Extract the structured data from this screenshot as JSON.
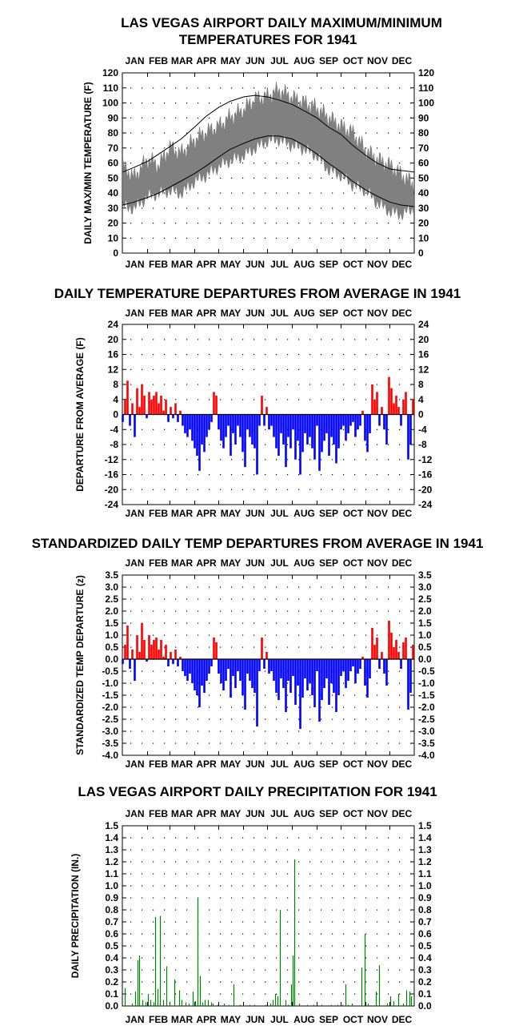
{
  "months": [
    "JAN",
    "FEB",
    "MAR",
    "APR",
    "MAY",
    "JUN",
    "JUL",
    "AUG",
    "SEP",
    "OCT",
    "NOV",
    "DEC"
  ],
  "colors": {
    "max_min_band": "#808080",
    "normal_lines": "#000000",
    "positive_departure": "#ff0000",
    "negative_departure": "#0000ff",
    "precipitation": "#008000",
    "grid_dots": "#000000"
  },
  "chart_data": [
    {
      "id": "temps",
      "type": "area",
      "title_lines": [
        "LAS VEGAS AIRPORT DAILY MAXIMUM/MINIMUM",
        "TEMPERATURES FOR 1941"
      ],
      "ylabel": "DAILY MAX/MIN TEMPERATURE (F)",
      "xlabel": "",
      "ylim": [
        0,
        120
      ],
      "yticks": [
        "0",
        "10",
        "20",
        "30",
        "40",
        "50",
        "60",
        "70",
        "80",
        "90",
        "100",
        "110",
        "120"
      ],
      "grid": true,
      "x": [
        1,
        15,
        32,
        46,
        60,
        74,
        91,
        105,
        121,
        135,
        152,
        166,
        182,
        196,
        213,
        227,
        244,
        258,
        274,
        288,
        305,
        319,
        335,
        349,
        365
      ],
      "series": [
        {
          "key": "max",
          "values": [
            58,
            50,
            62,
            58,
            70,
            66,
            75,
            80,
            84,
            90,
            95,
            102,
            104,
            108,
            103,
            100,
            96,
            90,
            84,
            80,
            68,
            62,
            58,
            52,
            45
          ]
        },
        {
          "key": "min",
          "values": [
            32,
            30,
            38,
            40,
            42,
            40,
            48,
            52,
            58,
            62,
            65,
            70,
            75,
            76,
            72,
            70,
            65,
            56,
            52,
            46,
            42,
            34,
            28,
            26,
            30
          ]
        },
        {
          "key": "normal_max",
          "values": [
            54,
            57,
            61,
            66,
            71,
            76,
            84,
            91,
            97,
            101,
            104,
            105,
            104,
            102,
            99,
            95,
            90,
            84,
            79,
            72,
            65,
            60,
            56,
            55,
            54
          ]
        },
        {
          "key": "normal_min",
          "values": [
            32,
            34,
            37,
            40,
            44,
            48,
            53,
            58,
            64,
            69,
            73,
            76,
            78,
            78,
            76,
            72,
            66,
            60,
            54,
            48,
            42,
            38,
            34,
            32,
            31
          ]
        }
      ]
    },
    {
      "id": "departures",
      "type": "bar",
      "title_lines": [
        "DAILY TEMPERATURE DEPARTURES FROM AVERAGE IN 1941"
      ],
      "ylabel": "DEPARTURE FROM AVERAGE (F)",
      "xlabel": "",
      "ylim": [
        -24,
        24
      ],
      "yticks": [
        "-24",
        "-20",
        "-16",
        "-12",
        "-8",
        "-4",
        "0",
        "4",
        "8",
        "12",
        "16",
        "20",
        "24"
      ],
      "grid": true,
      "x": [
        1,
        4,
        7,
        10,
        13,
        16,
        19,
        22,
        25,
        28,
        31,
        34,
        37,
        40,
        43,
        46,
        49,
        52,
        55,
        58,
        61,
        64,
        67,
        70,
        73,
        76,
        79,
        82,
        85,
        88,
        91,
        94,
        97,
        100,
        103,
        106,
        109,
        112,
        115,
        118,
        121,
        124,
        127,
        130,
        133,
        136,
        139,
        142,
        145,
        148,
        151,
        154,
        157,
        160,
        163,
        166,
        169,
        172,
        175,
        178,
        181,
        184,
        187,
        190,
        193,
        196,
        199,
        202,
        205,
        208,
        211,
        214,
        217,
        220,
        223,
        226,
        229,
        232,
        235,
        238,
        241,
        244,
        247,
        250,
        253,
        256,
        259,
        262,
        265,
        268,
        271,
        274,
        277,
        280,
        283,
        286,
        289,
        292,
        295,
        298,
        301,
        304,
        307,
        310,
        313,
        316,
        319,
        322,
        325,
        328,
        331,
        334,
        337,
        340,
        343,
        346,
        349,
        352,
        355,
        358,
        361,
        364
      ],
      "values": [
        -2,
        4,
        9,
        -3,
        3,
        -6,
        7,
        2,
        8,
        5,
        -1,
        6,
        4,
        5,
        6,
        3,
        5,
        1,
        4,
        -2,
        2,
        -1,
        3,
        -2,
        1,
        -3,
        -5,
        -6,
        -4,
        -7,
        -9,
        -11,
        -15,
        -8,
        -10,
        -6,
        -4,
        -2,
        6,
        5,
        -4,
        -7,
        -9,
        -6,
        -3,
        -11,
        -5,
        -8,
        -3,
        -6,
        -10,
        -14,
        -4,
        -6,
        -8,
        -9,
        -16,
        -3,
        5,
        -3,
        2,
        -4,
        -3,
        -6,
        -9,
        -11,
        -5,
        -8,
        -14,
        -6,
        -9,
        -4,
        -12,
        -7,
        -16,
        -10,
        -5,
        -8,
        -6,
        -9,
        -12,
        -3,
        -15,
        -10,
        -7,
        -5,
        -11,
        -6,
        -8,
        -13,
        -9,
        -4,
        -3,
        -7,
        -5,
        -3,
        -2,
        -6,
        -4,
        -3,
        1,
        -7,
        -10,
        -5,
        8,
        4,
        6,
        -3,
        2,
        -4,
        -8,
        10,
        7,
        3,
        5,
        2,
        -3,
        4,
        6,
        -12,
        -8,
        4
      ]
    },
    {
      "id": "standardized",
      "type": "bar",
      "title_lines": [
        "STANDARDIZED DAILY TEMP DEPARTURES FROM AVERAGE IN 1941"
      ],
      "ylabel": "STANDARDIZED TEMP DEPARTURE (z)",
      "xlabel": "",
      "ylim": [
        -4.0,
        3.5
      ],
      "yticks": [
        "-4.0",
        "-3.5",
        "-3.0",
        "-2.5",
        "-2.0",
        "-1.5",
        "-1.0",
        "-0.5",
        "0.0",
        "0.5",
        "1.0",
        "1.5",
        "2.0",
        "2.5",
        "3.0",
        "3.5"
      ],
      "grid": true,
      "x": [
        1,
        4,
        7,
        10,
        13,
        16,
        19,
        22,
        25,
        28,
        31,
        34,
        37,
        40,
        43,
        46,
        49,
        52,
        55,
        58,
        61,
        64,
        67,
        70,
        73,
        76,
        79,
        82,
        85,
        88,
        91,
        94,
        97,
        100,
        103,
        106,
        109,
        112,
        115,
        118,
        121,
        124,
        127,
        130,
        133,
        136,
        139,
        142,
        145,
        148,
        151,
        154,
        157,
        160,
        163,
        166,
        169,
        172,
        175,
        178,
        181,
        184,
        187,
        190,
        193,
        196,
        199,
        202,
        205,
        208,
        211,
        214,
        217,
        220,
        223,
        226,
        229,
        232,
        235,
        238,
        241,
        244,
        247,
        250,
        253,
        256,
        259,
        262,
        265,
        268,
        271,
        274,
        277,
        280,
        283,
        286,
        289,
        292,
        295,
        298,
        301,
        304,
        307,
        310,
        313,
        316,
        319,
        322,
        325,
        328,
        331,
        334,
        337,
        340,
        343,
        346,
        349,
        352,
        355,
        358,
        361,
        364
      ],
      "values": [
        -0.2,
        0.6,
        1.4,
        -0.4,
        0.4,
        -0.9,
        1.0,
        0.3,
        1.5,
        0.8,
        -0.1,
        1.0,
        0.6,
        0.8,
        0.9,
        0.4,
        0.8,
        0.1,
        0.6,
        -0.3,
        0.3,
        -0.2,
        0.4,
        -0.3,
        0.1,
        -0.5,
        -0.7,
        -0.9,
        -0.6,
        -1.0,
        -1.3,
        -1.5,
        -2.0,
        -1.1,
        -1.4,
        -0.9,
        -0.6,
        -0.3,
        0.9,
        0.7,
        -0.6,
        -1.0,
        -1.3,
        -0.9,
        -0.4,
        -1.6,
        -0.7,
        -1.2,
        -0.5,
        -0.9,
        -1.5,
        -2.1,
        -0.6,
        -0.9,
        -1.2,
        -1.4,
        -2.8,
        -0.5,
        0.9,
        -0.4,
        0.3,
        -0.6,
        -0.5,
        -0.9,
        -1.4,
        -1.7,
        -0.8,
        -1.2,
        -2.2,
        -0.9,
        -1.4,
        -0.7,
        -1.9,
        -1.1,
        -2.9,
        -1.6,
        -0.8,
        -1.3,
        -1.0,
        -1.5,
        -2.0,
        -0.5,
        -2.6,
        -1.7,
        -1.2,
        -0.8,
        -1.9,
        -1.0,
        -1.4,
        -2.2,
        -1.5,
        -0.7,
        -0.5,
        -1.2,
        -0.9,
        -0.5,
        -0.3,
        -1.0,
        -0.6,
        -0.4,
        0.1,
        -1.1,
        -1.6,
        -0.8,
        1.3,
        0.6,
        0.9,
        -0.4,
        0.3,
        -0.6,
        -1.1,
        1.6,
        1.1,
        0.5,
        0.8,
        0.3,
        -0.4,
        0.7,
        0.9,
        -2.1,
        -1.4,
        0.6
      ]
    },
    {
      "id": "precip",
      "type": "bar",
      "title_lines": [
        "LAS VEGAS AIRPORT DAILY PRECIPITATION FOR 1941"
      ],
      "ylabel": "DAILY PRECIPITATION (IN.)",
      "xlabel": "",
      "ylim": [
        0,
        1.5
      ],
      "yticks": [
        "0.0",
        "0.1",
        "0.2",
        "0.3",
        "0.4",
        "0.5",
        "0.6",
        "0.7",
        "0.8",
        "0.9",
        "1.0",
        "1.1",
        "1.2",
        "1.3",
        "1.4",
        "1.5"
      ],
      "grid": true,
      "x": [
        4,
        13,
        17,
        20,
        22,
        26,
        30,
        33,
        36,
        40,
        42,
        45,
        48,
        52,
        56,
        60,
        66,
        72,
        75,
        80,
        84,
        89,
        92,
        95,
        98,
        101,
        104,
        108,
        112,
        114,
        120,
        128,
        134,
        140,
        148,
        160,
        166,
        180,
        186,
        189,
        192,
        195,
        198,
        205,
        208,
        212,
        214,
        216,
        222,
        232,
        240,
        250,
        262,
        270,
        276,
        280,
        283,
        288,
        300,
        304,
        308,
        318,
        322,
        332,
        336,
        340,
        346,
        352,
        356,
        360,
        362
      ],
      "values": [
        0.15,
        0.02,
        0.12,
        0.38,
        0.42,
        0.05,
        0.03,
        0.1,
        0.05,
        0.03,
        0.74,
        0.14,
        0.75,
        0.05,
        0.33,
        0.02,
        0.22,
        0.13,
        0.05,
        0.03,
        0.02,
        0.12,
        0.04,
        0.9,
        0.25,
        0.03,
        0.05,
        0.05,
        0.03,
        0.02,
        0.01,
        0.02,
        0.01,
        0.18,
        0.01,
        0.01,
        0.01,
        0.01,
        0.02,
        0.05,
        0.1,
        0.08,
        0.8,
        0.05,
        0.01,
        0.18,
        0.42,
        1.22,
        0.02,
        0.01,
        0.01,
        0.01,
        0.01,
        0.01,
        0.01,
        0.18,
        0.01,
        0.02,
        0.32,
        0.6,
        0.02,
        0.12,
        0.34,
        0.02,
        0.08,
        0.04,
        0.1,
        0.02,
        0.13,
        0.12,
        0.08
      ]
    }
  ]
}
